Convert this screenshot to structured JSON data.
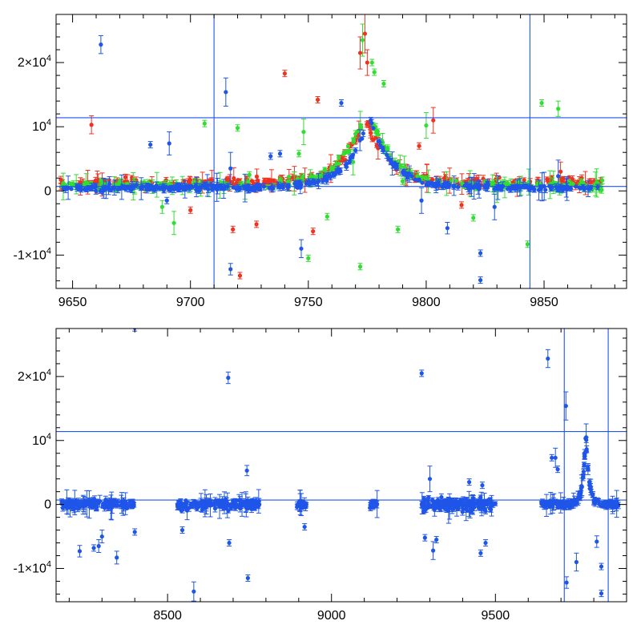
{
  "chart_data": [
    {
      "type": "scatter",
      "title": "",
      "xlabel": "",
      "ylabel": "",
      "xlim": [
        9643,
        9885
      ],
      "ylim": [
        -15200,
        27500
      ],
      "xticks": [
        {
          "value": 9650,
          "label": "9650"
        },
        {
          "value": 9700,
          "label": "9700"
        },
        {
          "value": 9750,
          "label": "9750"
        },
        {
          "value": 9800,
          "label": "9800"
        },
        {
          "value": 9850,
          "label": "9850"
        }
      ],
      "yticks": [
        {
          "value": -10000,
          "label": "-1×10",
          "sup": "4"
        },
        {
          "value": 0,
          "label": "0",
          "sup": ""
        },
        {
          "value": 10000,
          "label": "10",
          "sup": "4"
        },
        {
          "value": 20000,
          "label": "2×10",
          "sup": "4"
        }
      ],
      "hlines": [
        11400,
        700
      ],
      "vlines": [
        9710,
        9844
      ],
      "series": [
        {
          "name": "red",
          "color": "#ee3322",
          "peak": 9774,
          "amp": 10500,
          "width": 9,
          "base": 1300,
          "x0": 9645,
          "x1": 9875,
          "n": 320,
          "noise": 700,
          "seed": 11,
          "outliers": [
            [
              9658,
              10300,
              1400
            ],
            [
              9740,
              18300,
              0
            ],
            [
              9718,
              -6000,
              0
            ],
            [
              9721,
              -13200,
              0
            ],
            [
              9728,
              -5200,
              0
            ],
            [
              9752,
              -6300,
              0
            ],
            [
              9754,
              14200,
              0
            ],
            [
              9772,
              21500,
              2500
            ],
            [
              9774,
              24500,
              3000
            ],
            [
              9775,
              20000,
              2000
            ],
            [
              9803,
              11000,
              2000
            ],
            [
              9815,
              -2200,
              0
            ],
            [
              9826,
              900,
              0
            ],
            [
              9857,
              3000,
              1500
            ],
            [
              9866,
              2000,
              0
            ],
            [
              9797,
              7000,
              0
            ],
            [
              9700,
              -3000,
              0
            ]
          ]
        },
        {
          "name": "green",
          "color": "#33dd33",
          "peak": 9775,
          "amp": 12500,
          "width": 10,
          "base": 800,
          "x0": 9645,
          "x1": 9875,
          "n": 300,
          "noise": 650,
          "seed": 23,
          "outliers": [
            [
              9706,
              10500,
              0
            ],
            [
              9720,
              9800,
              0
            ],
            [
              9746,
              5800,
              0
            ],
            [
              9750,
              -10500,
              0
            ],
            [
              9748,
              9200,
              2000
            ],
            [
              9773,
              23500,
              2500
            ],
            [
              9777,
              20000,
              0
            ],
            [
              9778,
              18500,
              0
            ],
            [
              9782,
              16700,
              0
            ],
            [
              9772,
              -11800,
              0
            ],
            [
              9769,
              4500,
              2000
            ],
            [
              9788,
              -6000,
              0
            ],
            [
              9800,
              10200,
              2000
            ],
            [
              9820,
              -4200,
              0
            ],
            [
              9849,
              13700,
              0
            ],
            [
              9856,
              12800,
              1200
            ],
            [
              9843,
              -8300,
              0
            ],
            [
              9693,
              -5000,
              1800
            ],
            [
              9688,
              -2500,
              1000
            ],
            [
              9725,
              2500,
              0
            ],
            [
              9758,
              -4000,
              0
            ],
            [
              9790,
              1500,
              0
            ]
          ]
        },
        {
          "name": "blue",
          "color": "#1f55e8",
          "peak": 9776,
          "amp": 11200,
          "width": 9,
          "base": 500,
          "x0": 9645,
          "x1": 9875,
          "n": 380,
          "noise": 420,
          "seed": 37,
          "outliers": [
            [
              9662,
              22800,
              1400
            ],
            [
              9683,
              7200,
              0
            ],
            [
              9691,
              7400,
              1800
            ],
            [
              9715,
              15400,
              2200
            ],
            [
              9717,
              -12200,
              900
            ],
            [
              9747,
              -9000,
              1400
            ],
            [
              9809,
              -5800,
              900
            ],
            [
              9823,
              -9700,
              0
            ],
            [
              9823,
              -13900,
              0
            ],
            [
              9829,
              -2500,
              2000
            ],
            [
              9764,
              13700,
              0
            ],
            [
              9738,
              5800,
              0
            ],
            [
              9690,
              -1500,
              0
            ],
            [
              9734,
              5400,
              0
            ],
            [
              9798,
              -1500,
              2000
            ],
            [
              9856,
              2300,
              2500
            ],
            [
              9717,
              3500,
              2500
            ],
            [
              9826,
              1300,
              0
            ]
          ]
        }
      ]
    },
    {
      "type": "scatter",
      "title": "",
      "xlabel": "",
      "ylabel": "",
      "xlim": [
        8160,
        9900
      ],
      "ylim": [
        -15200,
        27500
      ],
      "xticks": [
        {
          "value": 8500,
          "label": "8500"
        },
        {
          "value": 9000,
          "label": "9000"
        },
        {
          "value": 9500,
          "label": "9500"
        }
      ],
      "yticks": [
        {
          "value": -10000,
          "label": "-1×10",
          "sup": "4"
        },
        {
          "value": 0,
          "label": "0",
          "sup": ""
        },
        {
          "value": 10000,
          "label": "10",
          "sup": "4"
        },
        {
          "value": 20000,
          "label": "2×10",
          "sup": "4"
        }
      ],
      "hlines": [
        11400,
        700
      ],
      "vlines": [
        9710,
        9844
      ],
      "series": [
        {
          "name": "blue",
          "color": "#1f55e8",
          "segments": [
            {
              "x0": 8175,
              "x1": 8400,
              "n": 150,
              "noise": 700
            },
            {
              "x0": 8530,
              "x1": 8620,
              "n": 60,
              "noise": 650
            },
            {
              "x0": 8625,
              "x1": 8780,
              "n": 110,
              "noise": 800
            },
            {
              "x0": 8895,
              "x1": 8925,
              "n": 25,
              "noise": 500
            },
            {
              "x0": 9115,
              "x1": 9140,
              "n": 20,
              "noise": 500
            },
            {
              "x0": 9275,
              "x1": 9500,
              "n": 170,
              "noise": 900
            },
            {
              "x0": 9640,
              "x1": 9875,
              "n": 190,
              "noise": 450,
              "peak": 9776,
              "amp": 11500,
              "width": 9
            }
          ],
          "seed": 71,
          "outliers": [
            [
              8400,
              27600,
              0
            ],
            [
              8685,
              19800,
              900
            ],
            [
              9275,
              20500,
              0
            ],
            [
              9660,
              22800,
              1400
            ],
            [
              9715,
              15400,
              2200
            ],
            [
              9717,
              -12200,
              900
            ],
            [
              9747,
              -9000,
              1400
            ],
            [
              9823,
              -9700,
              0
            ],
            [
              9823,
              -13900,
              0
            ],
            [
              9809,
              -5800,
              900
            ],
            [
              8232,
              -7300,
              900
            ],
            [
              8275,
              -6800,
              0
            ],
            [
              8290,
              -6500,
              1000
            ],
            [
              8300,
              -5000,
              1000
            ],
            [
              8345,
              -8300,
              1000
            ],
            [
              8400,
              -4300,
              0
            ],
            [
              8580,
              -13600,
              1500
            ],
            [
              8545,
              -4000,
              0
            ],
            [
              8688,
              -6000,
              0
            ],
            [
              8745,
              -11500,
              0
            ],
            [
              8742,
              5300,
              800
            ],
            [
              8918,
              -3500,
              0
            ],
            [
              9285,
              -5200,
              0
            ],
            [
              9310,
              -7200,
              1400
            ],
            [
              9320,
              -5500,
              0
            ],
            [
              9455,
              -7600,
              0
            ],
            [
              9470,
              -6000,
              0
            ],
            [
              9672,
              7300,
              0
            ],
            [
              9683,
              7300,
              1500
            ],
            [
              9690,
              5500,
              0
            ],
            [
              9300,
              4000,
              2000
            ],
            [
              9420,
              3500,
              0
            ],
            [
              9460,
              3000,
              0
            ]
          ]
        }
      ]
    }
  ]
}
